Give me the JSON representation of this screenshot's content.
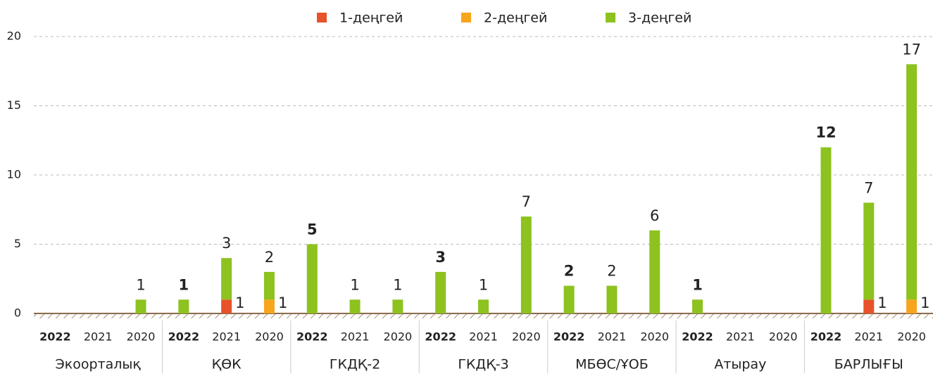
{
  "chart_data": {
    "type": "stacked_bar",
    "groups": [
      "Экоорталық",
      "ҚӨК",
      "ГКДҚ-2",
      "ГКДҚ-3",
      "МБӨС/ҰОБ",
      "Атырау",
      "БАРЛЫҒЫ"
    ],
    "categories": [
      "2022",
      "2021",
      "2020",
      "2022",
      "2021",
      "2020",
      "2022",
      "2021",
      "2020",
      "2022",
      "2021",
      "2020",
      "2022",
      "2021",
      "2020",
      "2022",
      "2021",
      "2020",
      "2022",
      "2021",
      "2020"
    ],
    "series": [
      {
        "name": "1-деңгей",
        "color": "#e8522a",
        "values": [
          null,
          null,
          null,
          null,
          1,
          null,
          null,
          null,
          null,
          null,
          null,
          null,
          null,
          null,
          null,
          null,
          null,
          null,
          null,
          1,
          null
        ]
      },
      {
        "name": "2-деңгей",
        "color": "#f7a51c",
        "values": [
          null,
          null,
          null,
          null,
          null,
          1,
          null,
          null,
          null,
          null,
          null,
          null,
          null,
          null,
          null,
          null,
          null,
          null,
          null,
          null,
          1
        ]
      },
      {
        "name": "3-деңгей",
        "color": "#8dc21f",
        "values": [
          null,
          null,
          1,
          1,
          3,
          2,
          5,
          1,
          1,
          3,
          1,
          7,
          2,
          2,
          6,
          1,
          null,
          null,
          12,
          7,
          17
        ]
      }
    ],
    "ylim": [
      0,
      20
    ],
    "yticks": [
      0,
      5,
      10,
      15,
      20
    ],
    "grid": true,
    "legend": "top"
  }
}
